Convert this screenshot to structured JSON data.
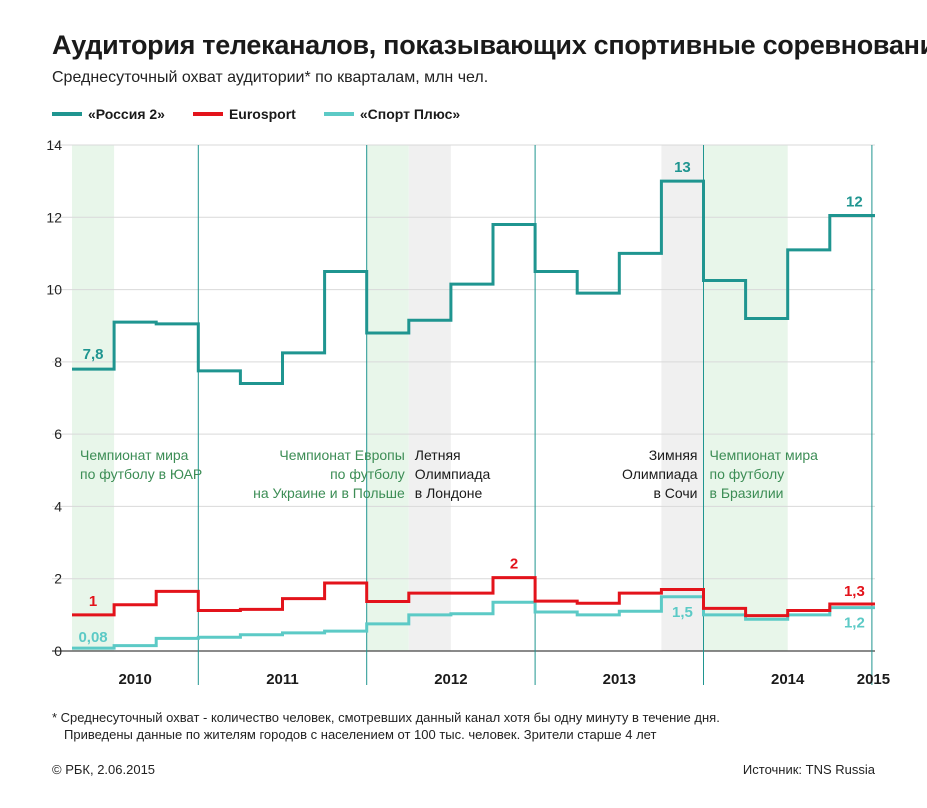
{
  "header": {
    "title": "Аудитория телеканалов, показывающих спортивные соревнования",
    "subtitle": "Среднесуточный охват аудитории* по кварталам, млн чел."
  },
  "legend": [
    {
      "label": "«Россия 2»",
      "color": "#1f9590"
    },
    {
      "label": "Eurosport",
      "color": "#e3131b"
    },
    {
      "label": "«Спорт Плюс»",
      "color": "#5ccac6"
    }
  ],
  "chart_data": {
    "type": "line",
    "step": true,
    "quarters": [
      "2010 Q2",
      "2010 Q3",
      "2010 Q4",
      "2011 Q1",
      "2011 Q2",
      "2011 Q3",
      "2011 Q4",
      "2012 Q1",
      "2012 Q2",
      "2012 Q3",
      "2012 Q4",
      "2013 Q1",
      "2013 Q2",
      "2013 Q3",
      "2013 Q4",
      "2014 Q1",
      "2014 Q2",
      "2014 Q3",
      "2014 Q4",
      "2015 Q1"
    ],
    "years": [
      "2010",
      "2011",
      "2012",
      "2013",
      "2014",
      "2015"
    ],
    "ylim": [
      0,
      14
    ],
    "yticks": [
      0,
      2,
      4,
      6,
      8,
      10,
      12,
      14
    ],
    "grid": true,
    "series": [
      {
        "name": "«Россия 2»",
        "color": "#1f9590",
        "values": [
          7.8,
          9.1,
          9.05,
          7.75,
          7.4,
          8.25,
          10.5,
          8.8,
          9.15,
          10.15,
          11.8,
          10.5,
          9.9,
          11.0,
          13.0,
          10.25,
          9.2,
          11.1,
          12.05,
          12.05
        ]
      },
      {
        "name": "Eurosport",
        "color": "#e3131b",
        "values": [
          1.0,
          1.28,
          1.65,
          1.12,
          1.15,
          1.45,
          1.88,
          1.37,
          1.6,
          1.6,
          2.03,
          1.38,
          1.32,
          1.6,
          1.7,
          1.18,
          0.98,
          1.12,
          1.3,
          1.3
        ]
      },
      {
        "name": "«Спорт Плюс»",
        "color": "#5ccac6",
        "values": [
          0.08,
          0.15,
          0.35,
          0.38,
          0.45,
          0.5,
          0.55,
          0.75,
          1.0,
          1.03,
          1.35,
          1.08,
          1.0,
          1.1,
          1.5,
          1.0,
          0.88,
          1.0,
          1.2,
          1.2
        ]
      }
    ],
    "value_labels": [
      {
        "series": 0,
        "index": 0,
        "text": "7,8"
      },
      {
        "series": 0,
        "index": 14,
        "text": "13"
      },
      {
        "series": 0,
        "index": 18,
        "text": "12"
      },
      {
        "series": 1,
        "index": 0,
        "text": "1"
      },
      {
        "series": 1,
        "index": 10,
        "text": "2"
      },
      {
        "series": 1,
        "index": 18,
        "text": "1,3"
      },
      {
        "series": 2,
        "index": 0,
        "text": "0,08"
      },
      {
        "series": 2,
        "index": 14,
        "text": "1,5"
      },
      {
        "series": 2,
        "index": 18,
        "text": "1,2"
      }
    ],
    "events": [
      {
        "kind": "football",
        "start": 0,
        "end": 1,
        "lines": [
          "Чемпионат мира",
          "по футболу в ЮАР"
        ]
      },
      {
        "kind": "football",
        "start": 7,
        "end": 8,
        "lines": [
          "Чемпионат Европы",
          "по футболу",
          "на Украине и в Польше"
        ]
      },
      {
        "kind": "olympics",
        "start": 8,
        "end": 9,
        "lines": [
          "Летняя",
          "Олимпиада",
          "в Лондоне"
        ]
      },
      {
        "kind": "olympics",
        "start": 14,
        "end": 15,
        "lines": [
          "Зимняя",
          "Олимпиада",
          "в Сочи"
        ]
      },
      {
        "kind": "football",
        "start": 15,
        "end": 17,
        "lines": [
          "Чемпионат мира",
          "по футболу",
          "в Бразилии"
        ]
      }
    ],
    "colors": {
      "football_band": "#e8f6ea",
      "olympics_band": "#f0f0f0",
      "football_text": "#3c8d55",
      "olympics_text": "#1a1a1a",
      "divider": "#1f9590",
      "grid": "#d9d9d9"
    }
  },
  "footnote": [
    "* Среднесуточный охват - количество человек, смотревших данный канал хотя бы одну минуту в течение дня.",
    "Приведены данные по жителям городов с населением от 100 тыс. человек. Зрители старше 4 лет"
  ],
  "footer": {
    "copyright": "© РБК, 2.06.2015",
    "source": "Источник: TNS Russia"
  }
}
